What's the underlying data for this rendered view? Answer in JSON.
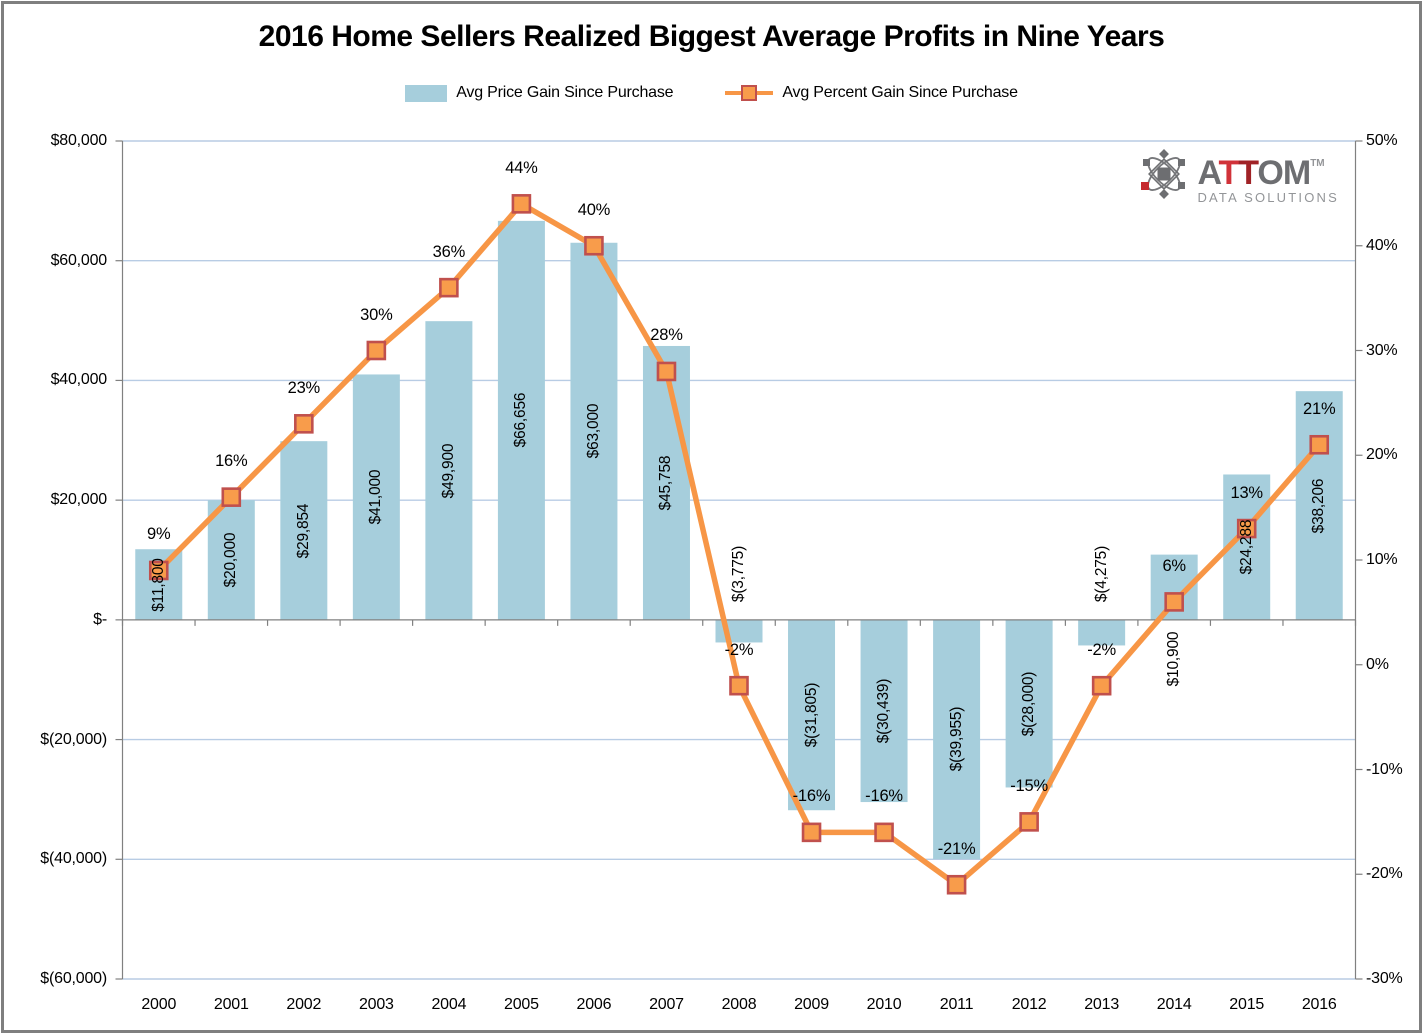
{
  "title": "2016 Home Sellers Realized Biggest Average Profits in Nine Years",
  "legend": [
    {
      "label": "Avg Price Gain Since Purchase",
      "type": "bar"
    },
    {
      "label": "Avg Percent Gain Since Purchase",
      "type": "line"
    }
  ],
  "logo": {
    "brand_a": "A",
    "brand_t1": "T",
    "brand_t2": "T",
    "brand_om": "OM",
    "tm": "TM",
    "subtitle": "DATA SOLUTIONS"
  },
  "chart_data": {
    "type": "bar",
    "combo": "bar+line dual-axis",
    "categories": [
      "2000",
      "2001",
      "2002",
      "2003",
      "2004",
      "2005",
      "2006",
      "2007",
      "2008",
      "2009",
      "2010",
      "2011",
      "2012",
      "2013",
      "2014",
      "2015",
      "2016"
    ],
    "series": [
      {
        "name": "Avg Price Gain Since Purchase",
        "type": "bar",
        "axis": "left",
        "values": [
          11800,
          20000,
          29854,
          41000,
          49900,
          66656,
          63000,
          45758,
          -3775,
          -31805,
          -30439,
          -39955,
          -28000,
          -4275,
          10900,
          24288,
          38206
        ],
        "data_labels": [
          "$11,800",
          "$20,000",
          "$29,854",
          "$41,000",
          "$49,900",
          "$66,656",
          "$63,000",
          "$45,758",
          "$(3,775)",
          "$(31,805)",
          "$(30,439)",
          "$(39,955)",
          "$(28,000)",
          "$(4,275)",
          "$10,900",
          "$24,288",
          "$38,206"
        ]
      },
      {
        "name": "Avg Percent Gain Since Purchase",
        "type": "line",
        "axis": "right",
        "values": [
          9,
          16,
          23,
          30,
          36,
          44,
          40,
          28,
          -2,
          -16,
          -16,
          -21,
          -15,
          -2,
          6,
          13,
          21
        ],
        "data_labels": [
          "9%",
          "16%",
          "23%",
          "30%",
          "36%",
          "44%",
          "40%",
          "28%",
          "-2%",
          "-16%",
          "-16%",
          "-21%",
          "-15%",
          "-2%",
          "6%",
          "13%",
          "21%"
        ]
      }
    ],
    "left_axis": {
      "min": -60000,
      "max": 80000,
      "tick_step": 20000,
      "tick_values": [
        80000,
        60000,
        40000,
        20000,
        0,
        -20000,
        -40000,
        -60000
      ],
      "tick_labels": [
        "$80,000",
        "$60,000",
        "$40,000",
        "$20,000",
        "$-",
        "$(20,000)",
        "$(40,000)",
        "$(60,000)"
      ]
    },
    "right_axis": {
      "min": -30,
      "max": 50,
      "tick_step": 10,
      "tick_values": [
        50,
        40,
        30,
        20,
        10,
        0,
        -10,
        -20,
        -30
      ],
      "tick_labels": [
        "50%",
        "40%",
        "30%",
        "20%",
        "10%",
        "0%",
        "-10%",
        "-20%",
        "-30%"
      ]
    },
    "grid": "horizontal gridlines on, legend top",
    "colors": {
      "bar": "#A6CEDC",
      "line": "#F79646",
      "marker_fill": "#F89C4B",
      "marker_border": "#C0504D",
      "gridline": "#B8CCE4",
      "axis": "#808080"
    }
  }
}
